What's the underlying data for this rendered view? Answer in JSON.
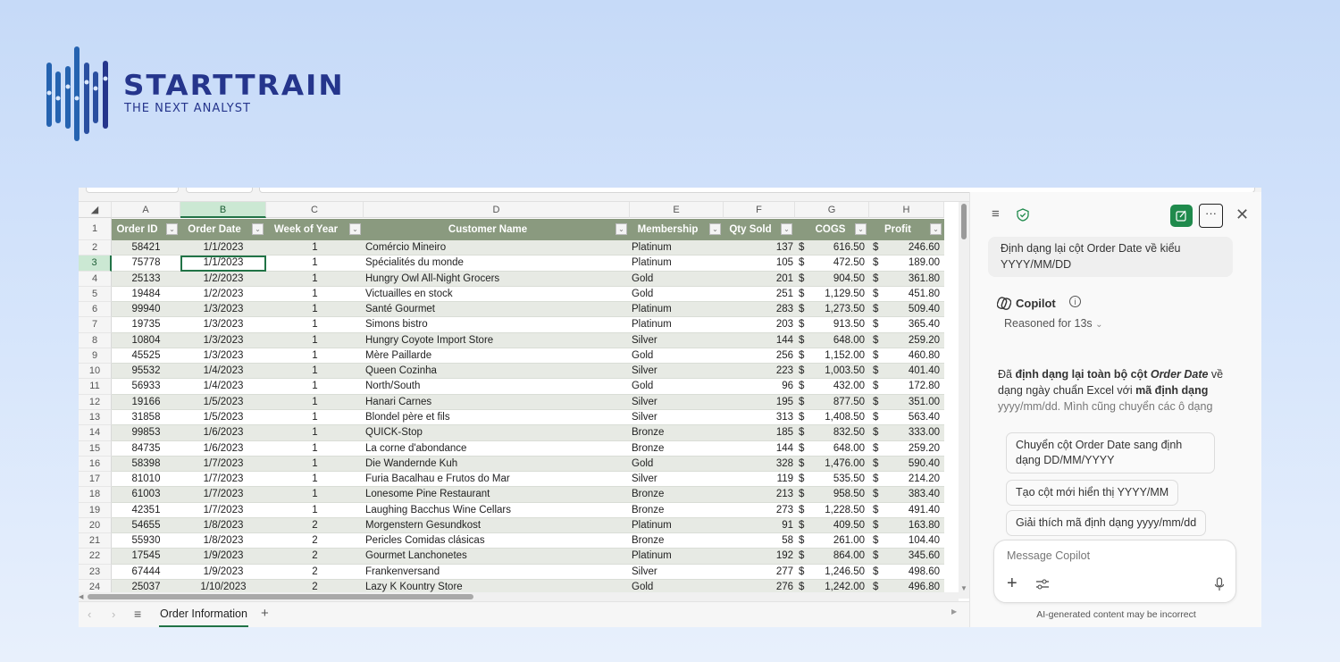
{
  "brand": {
    "name": "STARTTRAIN",
    "tagline": "THE NEXT ANALYST",
    "colors": {
      "bars": "#2563b0",
      "text": "#25358c"
    }
  },
  "sheet": {
    "column_letters": [
      "A",
      "B",
      "C",
      "D",
      "E",
      "F",
      "G",
      "H"
    ],
    "selected_column": "B",
    "selected_row": 3,
    "headers": [
      "Order ID",
      "Order Date",
      "Week of Year",
      "Customer Name",
      "Membership",
      "Qty Sold",
      "COGS",
      "Profit"
    ],
    "currency_symbol": "$",
    "rows": [
      {
        "n": "2",
        "id": "58421",
        "date": "1/1/2023",
        "week": "1",
        "customer": "Comércio Mineiro",
        "membership": "Platinum",
        "qty": "137",
        "cogs": "616.50",
        "profit": "246.60"
      },
      {
        "n": "3",
        "id": "75778",
        "date": "1/1/2023",
        "week": "1",
        "customer": "Spécialités du monde",
        "membership": "Platinum",
        "qty": "105",
        "cogs": "472.50",
        "profit": "189.00"
      },
      {
        "n": "4",
        "id": "25133",
        "date": "1/2/2023",
        "week": "1",
        "customer": "Hungry Owl All-Night Grocers",
        "membership": "Gold",
        "qty": "201",
        "cogs": "904.50",
        "profit": "361.80"
      },
      {
        "n": "5",
        "id": "19484",
        "date": "1/2/2023",
        "week": "1",
        "customer": "Victuailles en stock",
        "membership": "Gold",
        "qty": "251",
        "cogs": "1,129.50",
        "profit": "451.80"
      },
      {
        "n": "6",
        "id": "99940",
        "date": "1/3/2023",
        "week": "1",
        "customer": "Santé Gourmet",
        "membership": "Platinum",
        "qty": "283",
        "cogs": "1,273.50",
        "profit": "509.40"
      },
      {
        "n": "7",
        "id": "19735",
        "date": "1/3/2023",
        "week": "1",
        "customer": "Simons bistro",
        "membership": "Platinum",
        "qty": "203",
        "cogs": "913.50",
        "profit": "365.40"
      },
      {
        "n": "8",
        "id": "10804",
        "date": "1/3/2023",
        "week": "1",
        "customer": "Hungry Coyote Import Store",
        "membership": "Silver",
        "qty": "144",
        "cogs": "648.00",
        "profit": "259.20"
      },
      {
        "n": "9",
        "id": "45525",
        "date": "1/3/2023",
        "week": "1",
        "customer": "Mère Paillarde",
        "membership": "Gold",
        "qty": "256",
        "cogs": "1,152.00",
        "profit": "460.80"
      },
      {
        "n": "10",
        "id": "95532",
        "date": "1/4/2023",
        "week": "1",
        "customer": "Queen Cozinha",
        "membership": "Silver",
        "qty": "223",
        "cogs": "1,003.50",
        "profit": "401.40"
      },
      {
        "n": "11",
        "id": "56933",
        "date": "1/4/2023",
        "week": "1",
        "customer": "North/South",
        "membership": "Gold",
        "qty": "96",
        "cogs": "432.00",
        "profit": "172.80"
      },
      {
        "n": "12",
        "id": "19166",
        "date": "1/5/2023",
        "week": "1",
        "customer": "Hanari Carnes",
        "membership": "Silver",
        "qty": "195",
        "cogs": "877.50",
        "profit": "351.00"
      },
      {
        "n": "13",
        "id": "31858",
        "date": "1/5/2023",
        "week": "1",
        "customer": "Blondel père et fils",
        "membership": "Silver",
        "qty": "313",
        "cogs": "1,408.50",
        "profit": "563.40"
      },
      {
        "n": "14",
        "id": "99853",
        "date": "1/6/2023",
        "week": "1",
        "customer": "QUICK-Stop",
        "membership": "Bronze",
        "qty": "185",
        "cogs": "832.50",
        "profit": "333.00"
      },
      {
        "n": "15",
        "id": "84735",
        "date": "1/6/2023",
        "week": "1",
        "customer": "La corne d'abondance",
        "membership": "Bronze",
        "qty": "144",
        "cogs": "648.00",
        "profit": "259.20"
      },
      {
        "n": "16",
        "id": "58398",
        "date": "1/7/2023",
        "week": "1",
        "customer": "Die Wandernde Kuh",
        "membership": "Gold",
        "qty": "328",
        "cogs": "1,476.00",
        "profit": "590.40"
      },
      {
        "n": "17",
        "id": "81010",
        "date": "1/7/2023",
        "week": "1",
        "customer": "Furia Bacalhau e Frutos do Mar",
        "membership": "Silver",
        "qty": "119",
        "cogs": "535.50",
        "profit": "214.20"
      },
      {
        "n": "18",
        "id": "61003",
        "date": "1/7/2023",
        "week": "1",
        "customer": "Lonesome Pine Restaurant",
        "membership": "Bronze",
        "qty": "213",
        "cogs": "958.50",
        "profit": "383.40"
      },
      {
        "n": "19",
        "id": "42351",
        "date": "1/7/2023",
        "week": "1",
        "customer": "Laughing Bacchus Wine Cellars",
        "membership": "Bronze",
        "qty": "273",
        "cogs": "1,228.50",
        "profit": "491.40"
      },
      {
        "n": "20",
        "id": "54655",
        "date": "1/8/2023",
        "week": "2",
        "customer": "Morgenstern Gesundkost",
        "membership": "Platinum",
        "qty": "91",
        "cogs": "409.50",
        "profit": "163.80"
      },
      {
        "n": "21",
        "id": "55930",
        "date": "1/8/2023",
        "week": "2",
        "customer": "Pericles Comidas clásicas",
        "membership": "Bronze",
        "qty": "58",
        "cogs": "261.00",
        "profit": "104.40"
      },
      {
        "n": "22",
        "id": "17545",
        "date": "1/9/2023",
        "week": "2",
        "customer": "Gourmet Lanchonetes",
        "membership": "Platinum",
        "qty": "192",
        "cogs": "864.00",
        "profit": "345.60"
      },
      {
        "n": "23",
        "id": "67444",
        "date": "1/9/2023",
        "week": "2",
        "customer": "Frankenversand",
        "membership": "Silver",
        "qty": "277",
        "cogs": "1,246.50",
        "profit": "498.60"
      },
      {
        "n": "24",
        "id": "25037",
        "date": "1/10/2023",
        "week": "2",
        "customer": "Lazy K Kountry Store",
        "membership": "Gold",
        "qty": "276",
        "cogs": "1,242.00",
        "profit": "496.80"
      }
    ],
    "sheet_tab": "Order Information",
    "colors": {
      "header_bg": "#8a9a7f",
      "band": "#e7eae4",
      "selection": "#217346"
    }
  },
  "copilot": {
    "user_message": "Định dạng lại cột Order Date về kiểu YYYY/MM/DD",
    "assistant_name": "Copilot",
    "reasoned": "Reasoned for 13s",
    "response": {
      "p1": "Đã ",
      "b1": "định dạng lại toàn bộ cột ",
      "i1": "Order Date",
      "p2": " về dạng ngày chuẩn Excel với ",
      "b2": "mã định dạng",
      "p3": " yyyy/mm/dd. Mình cũng chuyển các ô dạng"
    },
    "suggestions": [
      "Chuyển cột Order Date sang định dạng DD/MM/YYYY",
      "Tạo cột mới hiển thị YYYY/MM",
      "Giải thích mã định dạng yyyy/mm/dd"
    ],
    "input_placeholder": "Message Copilot",
    "disclaimer": "AI-generated content may be incorrect",
    "accent": "#1f8a4c"
  }
}
